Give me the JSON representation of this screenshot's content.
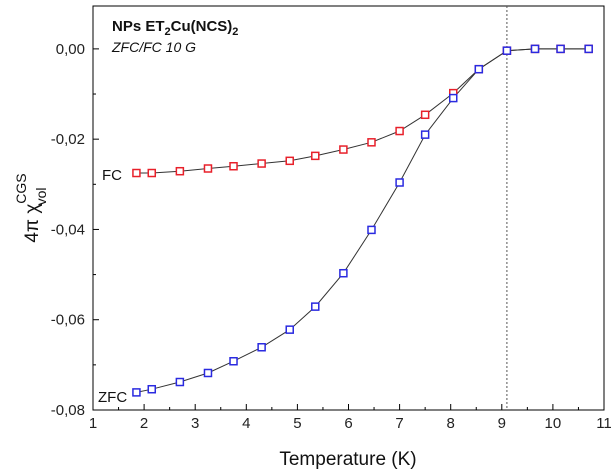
{
  "chart_data": {
    "type": "scatter",
    "title": {
      "prefix": "NPs ET",
      "sub1": "2",
      "mid": "Cu(NCS)",
      "sub2": "2"
    },
    "subtitle": "ZFC/FC 10 G",
    "xlabel": "Temperature (K)",
    "ylabel": {
      "prefix": "4π χ",
      "sup": "CGS",
      "sub": "vol"
    },
    "xlim": [
      1,
      11
    ],
    "ylim": [
      -0.08,
      0.0095
    ],
    "xticks": [
      1,
      2,
      3,
      4,
      5,
      6,
      7,
      8,
      9,
      10,
      11
    ],
    "xtick_labels": [
      "1",
      "2",
      "3",
      "4",
      "5",
      "6",
      "7",
      "8",
      "9",
      "10",
      "11"
    ],
    "yticks": [
      0,
      -0.02,
      -0.04,
      -0.06,
      -0.08
    ],
    "ytick_labels": [
      "0,00",
      "-0,02",
      "-0,04",
      "-0,06",
      "-0,08"
    ],
    "vline_x": 9.1,
    "series": [
      {
        "name": "FC",
        "color": "#e8202a",
        "x": [
          1.85,
          2.15,
          2.7,
          3.25,
          3.75,
          4.3,
          4.85,
          5.35,
          5.9,
          6.45,
          7.0,
          7.5,
          8.05,
          8.55,
          9.1,
          9.65,
          10.15,
          10.7
        ],
        "y": [
          -0.0275,
          -0.0275,
          -0.0271,
          -0.0265,
          -0.026,
          -0.0254,
          -0.0248,
          -0.0237,
          -0.0223,
          -0.0207,
          -0.0182,
          -0.0146,
          -0.0098,
          -0.0045,
          -0.0004,
          0.0,
          0.0,
          0.0
        ]
      },
      {
        "name": "ZFC",
        "color": "#2a2ae0",
        "x": [
          1.85,
          2.15,
          2.7,
          3.25,
          3.75,
          4.3,
          4.85,
          5.35,
          5.9,
          6.45,
          7.0,
          7.5,
          8.05,
          8.55,
          9.1,
          9.65,
          10.15,
          10.7
        ],
        "y": [
          -0.0761,
          -0.0754,
          -0.0738,
          -0.0718,
          -0.0692,
          -0.0661,
          -0.0622,
          -0.0571,
          -0.0497,
          -0.0401,
          -0.0296,
          -0.019,
          -0.0109,
          -0.0045,
          -0.0004,
          0.0,
          0.0,
          0.0
        ]
      }
    ]
  }
}
